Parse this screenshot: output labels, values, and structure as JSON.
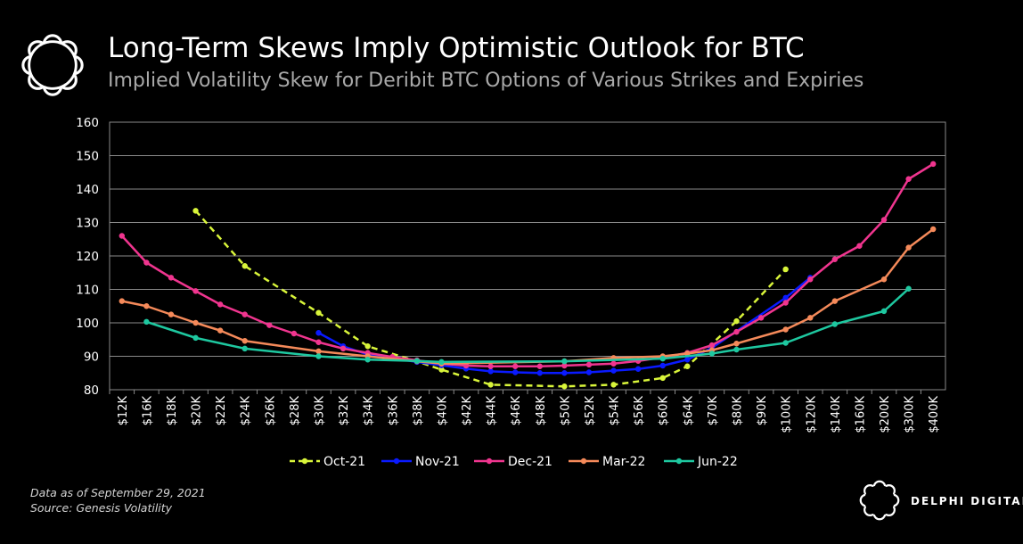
{
  "header": {
    "title": "Long-Term Skews Imply Optimistic Outlook for BTC",
    "subtitle": "Implied Volatility Skew for Deribit BTC Options of Various Strikes and Expiries"
  },
  "footer": {
    "note_date": "Data as of September  29, 2021",
    "note_source": "Source:  Genesis Volatility",
    "brand": "DELPHI DIGITAL"
  },
  "icons": {
    "logo": "delphi-flower-logo-icon",
    "brand_logo": "delphi-flower-logo-icon"
  },
  "chart_data": {
    "type": "line",
    "title": "",
    "xlabel": "",
    "ylabel": "",
    "categories": [
      "$12K",
      "$16K",
      "$18K",
      "$20K",
      "$22K",
      "$24K",
      "$26K",
      "$28K",
      "$30K",
      "$32K",
      "$34K",
      "$36K",
      "$38K",
      "$40K",
      "$42K",
      "$44K",
      "$46K",
      "$48K",
      "$50K",
      "$52K",
      "$54K",
      "$56K",
      "$60K",
      "$64K",
      "$70K",
      "$80K",
      "$90K",
      "$100K",
      "$120K",
      "$140K",
      "$160K",
      "$200K",
      "$300K",
      "$400K"
    ],
    "ylim": [
      80,
      160
    ],
    "yticks": [
      "80",
      "90",
      "100",
      "110",
      "120",
      "130",
      "140",
      "150",
      "160"
    ],
    "grid": "horizontal",
    "legend_position": "bottom",
    "series": [
      {
        "name": "Oct-21",
        "color": "#d9f53a",
        "dashed": true,
        "values": [
          null,
          null,
          null,
          133.5,
          null,
          117,
          null,
          null,
          103,
          null,
          93,
          null,
          88.5,
          86,
          null,
          81.5,
          null,
          null,
          81,
          null,
          81.5,
          null,
          83.5,
          87,
          null,
          100.5,
          null,
          116,
          null,
          null,
          null,
          null,
          null,
          null
        ]
      },
      {
        "name": "Nov-21",
        "color": "#0a1aff",
        "dashed": false,
        "values": [
          null,
          null,
          null,
          null,
          null,
          null,
          null,
          null,
          97,
          93,
          90.5,
          null,
          88.3,
          87.3,
          86.3,
          85.5,
          85.2,
          85,
          85,
          85.2,
          85.7,
          86.2,
          87.2,
          89,
          92.5,
          null,
          null,
          107.5,
          113.5,
          null,
          null,
          null,
          null,
          null
        ]
      },
      {
        "name": "Dec-21",
        "color": "#f0358f",
        "dashed": false,
        "values": [
          126,
          118,
          113.5,
          109.5,
          105.5,
          102.5,
          99.3,
          96.8,
          94.2,
          92.3,
          91,
          89.8,
          88.8,
          87.8,
          87.2,
          87,
          87,
          87,
          87.2,
          87.5,
          87.8,
          88.6,
          89.7,
          91,
          93.3,
          97.3,
          101.5,
          106,
          113,
          119,
          123,
          130.8,
          143,
          147.5
        ]
      },
      {
        "name": "Mar-22",
        "color": "#f58a5a",
        "dashed": false,
        "values": [
          106.5,
          105,
          102.5,
          100,
          97.7,
          94.6,
          null,
          null,
          91.5,
          null,
          90,
          null,
          88.5,
          87.8,
          null,
          null,
          null,
          null,
          88.5,
          null,
          89.5,
          null,
          90,
          90.8,
          91.8,
          93.8,
          null,
          98,
          101.5,
          106.5,
          null,
          113,
          122.5,
          128
        ]
      },
      {
        "name": "Jun-22",
        "color": "#1ec8a0",
        "dashed": false,
        "values": [
          null,
          100.3,
          null,
          95.5,
          null,
          92.3,
          null,
          null,
          90,
          null,
          89,
          null,
          88.6,
          88.3,
          null,
          null,
          null,
          null,
          88.5,
          null,
          null,
          null,
          89.3,
          null,
          90.8,
          92,
          null,
          94,
          null,
          99.6,
          null,
          103.5,
          110.2,
          null
        ]
      }
    ]
  }
}
